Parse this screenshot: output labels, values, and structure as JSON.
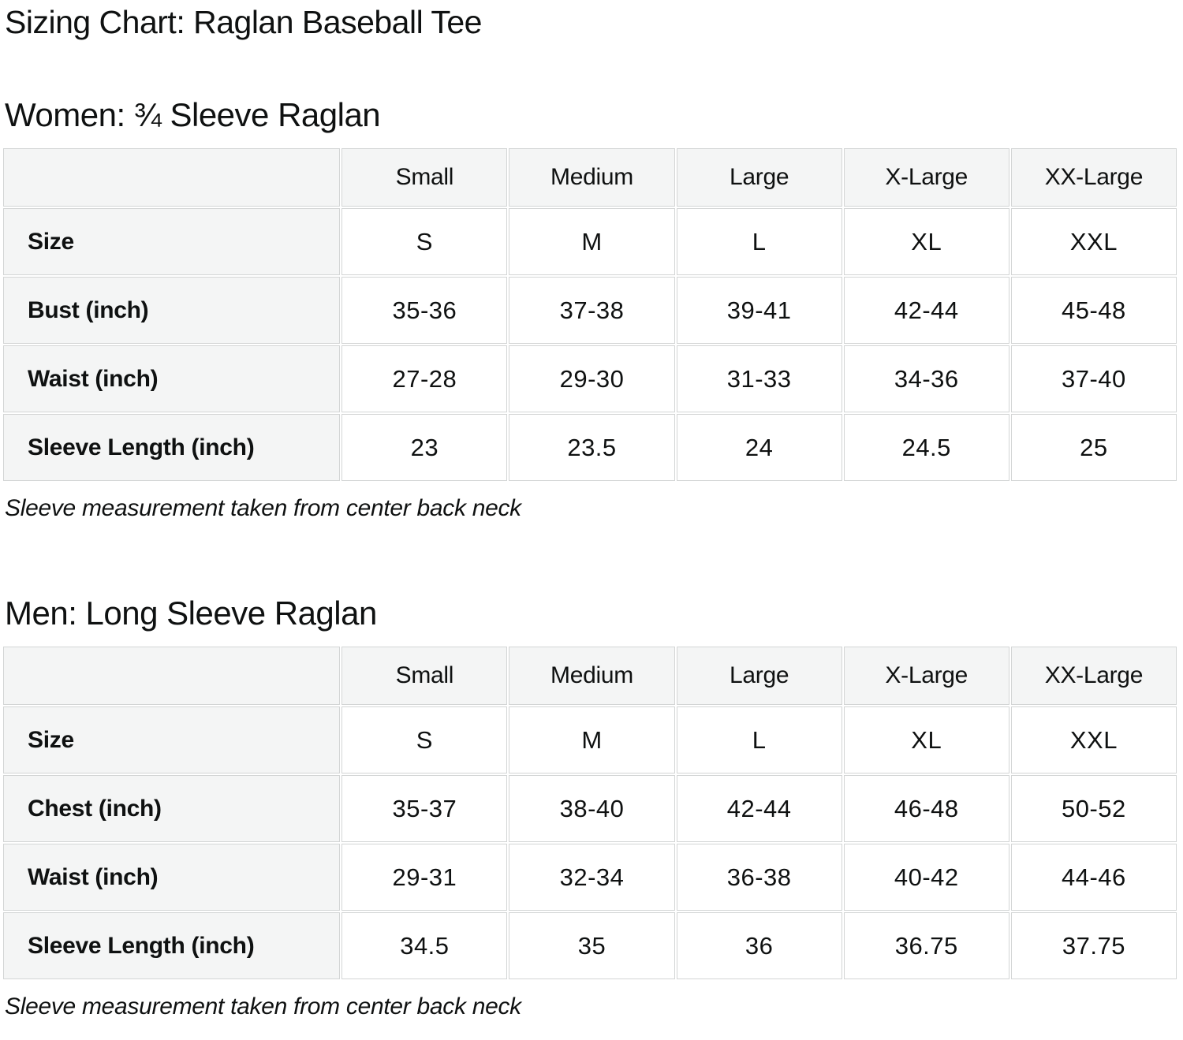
{
  "page": {
    "title": "Sizing Chart: Raglan Baseball Tee"
  },
  "colors": {
    "header_cell_bg": "#f4f5f5",
    "cell_border": "#d3d5d5",
    "text": "#0f1111",
    "background": "#ffffff"
  },
  "sections": [
    {
      "heading": "Women: ¾ Sleeve Raglan",
      "note": "Sleeve measurement taken from center back neck",
      "table": {
        "column_headers": [
          "",
          "Small",
          "Medium",
          "Large",
          "X-Large",
          "XX-Large"
        ],
        "rows": [
          {
            "label": "Size",
            "values": [
              "S",
              "M",
              "L",
              "XL",
              "XXL"
            ]
          },
          {
            "label": "Bust (inch)",
            "values": [
              "35-36",
              "37-38",
              "39-41",
              "42-44",
              "45-48"
            ]
          },
          {
            "label": "Waist (inch)",
            "values": [
              "27-28",
              "29-30",
              "31-33",
              "34-36",
              "37-40"
            ]
          },
          {
            "label": "Sleeve Length (inch)",
            "values": [
              "23",
              "23.5",
              "24",
              "24.5",
              "25"
            ]
          }
        ]
      }
    },
    {
      "heading": "Men: Long Sleeve Raglan",
      "note": "Sleeve measurement taken from center back neck",
      "table": {
        "column_headers": [
          "",
          "Small",
          "Medium",
          "Large",
          "X-Large",
          "XX-Large"
        ],
        "rows": [
          {
            "label": "Size",
            "values": [
              "S",
              "M",
              "L",
              "XL",
              "XXL"
            ]
          },
          {
            "label": "Chest (inch)",
            "values": [
              "35-37",
              "38-40",
              "42-44",
              "46-48",
              "50-52"
            ]
          },
          {
            "label": "Waist (inch)",
            "values": [
              "29-31",
              "32-34",
              "36-38",
              "40-42",
              "44-46"
            ]
          },
          {
            "label": "Sleeve Length (inch)",
            "values": [
              "34.5",
              "35",
              "36",
              "36.75",
              "37.75"
            ]
          }
        ]
      }
    }
  ]
}
